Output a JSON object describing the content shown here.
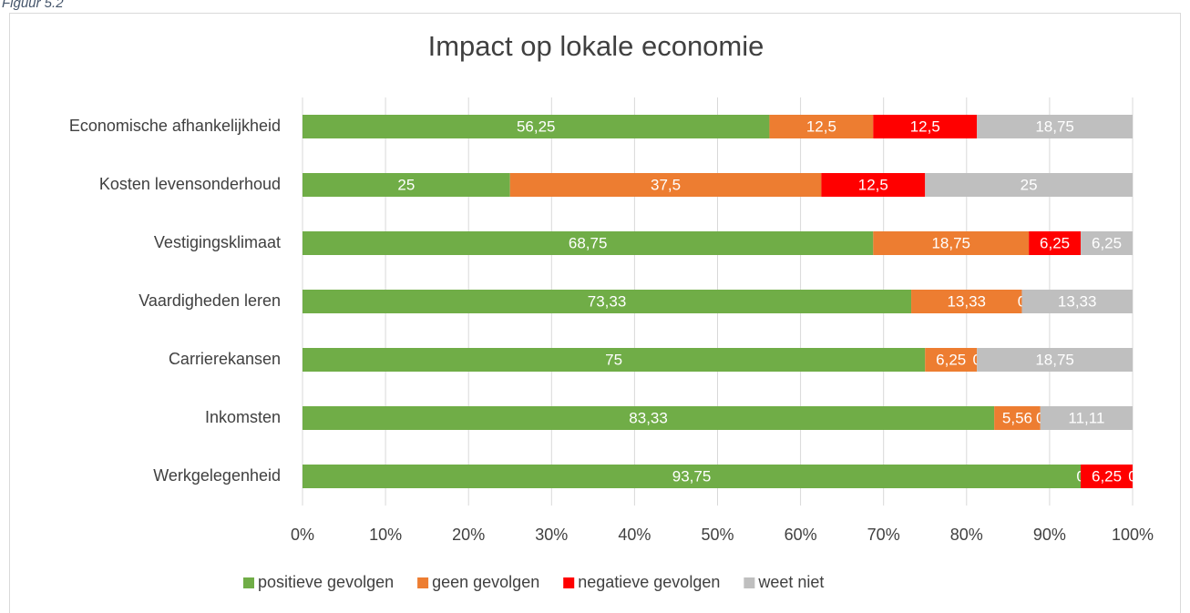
{
  "caption": "Figuur 5.2",
  "chart_data": {
    "type": "stacked-bar-horizontal",
    "title": "Impact op lokale economie",
    "categories": [
      "Economische afhankelijkheid",
      "Kosten levensonderhoud",
      "Vestigingsklimaat",
      "Vaardigheden leren",
      "Carrierekansen",
      "Inkomsten",
      "Werkgelegenheid"
    ],
    "series": [
      {
        "name": "positieve gevolgen",
        "color": "#70ad47",
        "values": [
          56.25,
          25,
          68.75,
          73.33,
          75,
          83.33,
          93.75
        ],
        "value_labels": [
          "56,25",
          "25",
          "68,75",
          "73,33",
          "75",
          "83,33",
          "93,75"
        ]
      },
      {
        "name": "geen gevolgen",
        "color": "#ed7d31",
        "values": [
          12.5,
          37.5,
          18.75,
          13.33,
          6.25,
          5.56,
          0
        ],
        "value_labels": [
          "12,5",
          "37,5",
          "18,75",
          "13,33",
          "6,25",
          "5,56",
          "0"
        ]
      },
      {
        "name": "negatieve gevolgen",
        "color": "#ff0000",
        "values": [
          12.5,
          12.5,
          6.25,
          0,
          0,
          0,
          6.25
        ],
        "value_labels": [
          "12,5",
          "12,5",
          "6,25",
          "0",
          "0",
          "0",
          "6,25"
        ]
      },
      {
        "name": "weet niet",
        "color": "#bfbfbf",
        "values": [
          18.75,
          25,
          6.25,
          13.33,
          18.75,
          11.11,
          0
        ],
        "value_labels": [
          "18,75",
          "25",
          "6,25",
          "13,33",
          "18,75",
          "11,11",
          "0"
        ]
      }
    ],
    "xlim": [
      0,
      100
    ],
    "xticks": [
      {
        "value": 0,
        "label": "0%"
      },
      {
        "value": 10,
        "label": "10%"
      },
      {
        "value": 20,
        "label": "20%"
      },
      {
        "value": 30,
        "label": "30%"
      },
      {
        "value": 40,
        "label": "40%"
      },
      {
        "value": 50,
        "label": "50%"
      },
      {
        "value": 60,
        "label": "60%"
      },
      {
        "value": 70,
        "label": "70%"
      },
      {
        "value": 80,
        "label": "80%"
      },
      {
        "value": 90,
        "label": "90%"
      },
      {
        "value": 100,
        "label": "100%"
      }
    ],
    "grid": true,
    "legend": "bottom"
  }
}
